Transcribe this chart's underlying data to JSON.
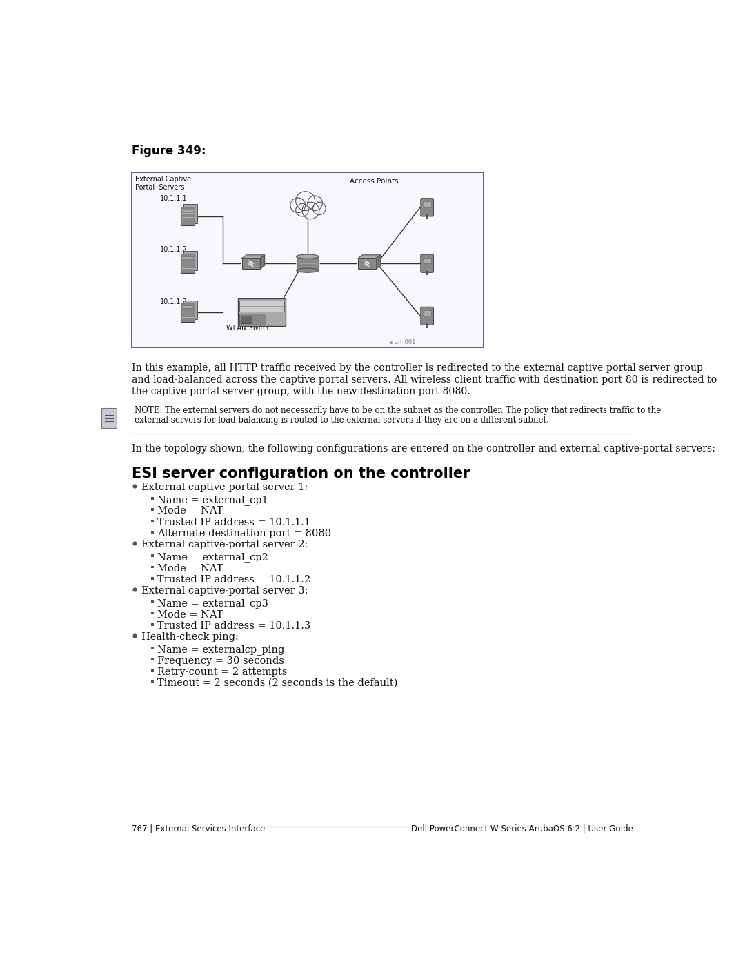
{
  "figure_label": "Figure 349:",
  "page_bg": "#ffffff",
  "diagram_border": "#5a6a9a",
  "label_ext_captive": "External Captive\nPortal  Servers",
  "label_access_points": "Access Points",
  "label_wlan_switch": "WLAN Switch",
  "label_10111": "10.1.1.1",
  "label_10112": "10.1.1.2",
  "label_10113": "10.1.1.3",
  "label_arun": "arun_001",
  "para1_lines": [
    "In this example, all HTTP traffic received by the controller is redirected to the external captive portal server group",
    "and load-balanced across the captive portal servers. All wireless client traffic with destination port 80 is redirected to",
    "the captive portal server group, with the new destination port 8080."
  ],
  "note_line1": "NOTE: The external servers do not necessarily have to be on the subnet as the controller. The policy that redirects traffic to the",
  "note_line2": "external servers for load balancing is routed to the external servers if they are on a different subnet.",
  "para2": "In the topology shown, the following configurations are entered on the controller and external captive-portal servers:",
  "section_title": "ESI server configuration on the controller",
  "bullets": [
    {
      "level": 1,
      "text": "External captive-portal server 1:"
    },
    {
      "level": 2,
      "text": "Name = external_cp1"
    },
    {
      "level": 2,
      "text": "Mode = NAT"
    },
    {
      "level": 2,
      "text": "Trusted IP address = 10.1.1.1"
    },
    {
      "level": 2,
      "text": "Alternate destination port = 8080"
    },
    {
      "level": 1,
      "text": "External captive-portal server 2:"
    },
    {
      "level": 2,
      "text": "Name = external_cp2"
    },
    {
      "level": 2,
      "text": "Mode = NAT"
    },
    {
      "level": 2,
      "text": "Trusted IP address = 10.1.1.2"
    },
    {
      "level": 1,
      "text": "External captive-portal server 3:"
    },
    {
      "level": 2,
      "text": "Name = external_cp3"
    },
    {
      "level": 2,
      "text": "Mode = NAT"
    },
    {
      "level": 2,
      "text": "Trusted IP address = 10.1.1.3"
    },
    {
      "level": 1,
      "text": "Health-check ping:"
    },
    {
      "level": 2,
      "text": "Name = externalcp_ping"
    },
    {
      "level": 2,
      "text": "Frequency = 30 seconds"
    },
    {
      "level": 2,
      "text": "Retry-count = 2 attempts"
    },
    {
      "level": 2,
      "text": "Timeout = 2 seconds (2 seconds is the default)"
    }
  ],
  "footer_left": "767 | External Services Interface",
  "footer_right": "Dell PowerConnect W-Series ArubaOS 6.2 | User Guide",
  "footer_line_color": "#aaaabb"
}
